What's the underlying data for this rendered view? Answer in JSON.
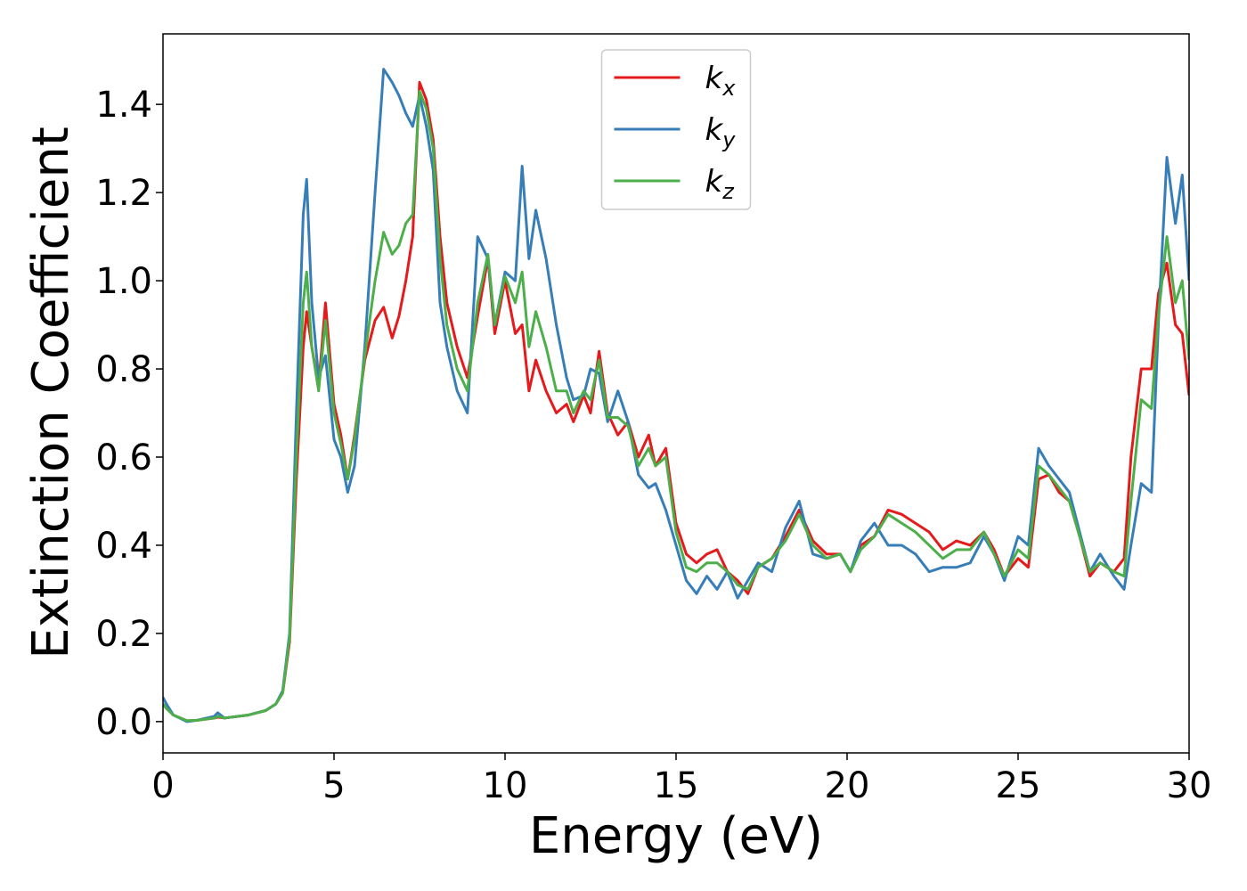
{
  "chart_data": {
    "type": "line",
    "x_label": "Energy (eV)",
    "y_label": "Extinction Coefficient",
    "x": [
      0,
      0.1,
      0.3,
      0.7,
      1.0,
      1.5,
      1.6,
      1.8,
      2.5,
      3.0,
      3.3,
      3.5,
      3.7,
      3.9,
      4.1,
      4.2,
      4.35,
      4.55,
      4.75,
      5.0,
      5.2,
      5.4,
      5.6,
      5.9,
      6.2,
      6.45,
      6.7,
      6.9,
      7.1,
      7.3,
      7.5,
      7.7,
      7.9,
      8.1,
      8.3,
      8.6,
      8.9,
      9.2,
      9.5,
      9.7,
      10.0,
      10.3,
      10.5,
      10.7,
      10.9,
      11.2,
      11.5,
      11.8,
      12.0,
      12.3,
      12.5,
      12.75,
      13.0,
      13.3,
      13.6,
      13.9,
      14.2,
      14.4,
      14.7,
      15.0,
      15.3,
      15.6,
      15.9,
      16.2,
      16.5,
      16.8,
      17.1,
      17.4,
      17.8,
      18.2,
      18.6,
      19.0,
      19.4,
      19.8,
      20.1,
      20.4,
      20.8,
      21.2,
      21.6,
      22.0,
      22.4,
      22.8,
      23.2,
      23.6,
      24.0,
      24.3,
      24.6,
      25.0,
      25.3,
      25.6,
      25.9,
      26.2,
      26.5,
      26.8,
      27.1,
      27.4,
      27.8,
      28.1,
      28.3,
      28.6,
      28.9,
      29.1,
      29.35,
      29.6,
      29.8,
      30.0
    ],
    "series": [
      {
        "name": "kx",
        "color": "#e41a1c",
        "values": [
          0.04,
          0.03,
          0.015,
          0.002,
          0.003,
          0.008,
          0.01,
          0.008,
          0.015,
          0.025,
          0.04,
          0.065,
          0.18,
          0.55,
          0.85,
          0.93,
          0.85,
          0.76,
          0.95,
          0.72,
          0.65,
          0.55,
          0.65,
          0.82,
          0.91,
          0.94,
          0.87,
          0.92,
          1.0,
          1.1,
          1.45,
          1.41,
          1.32,
          1.1,
          0.95,
          0.85,
          0.78,
          0.92,
          1.05,
          0.88,
          1.0,
          0.88,
          0.9,
          0.75,
          0.82,
          0.75,
          0.7,
          0.72,
          0.68,
          0.74,
          0.7,
          0.84,
          0.7,
          0.65,
          0.68,
          0.6,
          0.65,
          0.58,
          0.62,
          0.45,
          0.38,
          0.36,
          0.38,
          0.39,
          0.34,
          0.32,
          0.29,
          0.35,
          0.37,
          0.42,
          0.48,
          0.41,
          0.38,
          0.38,
          0.34,
          0.4,
          0.42,
          0.48,
          0.47,
          0.45,
          0.43,
          0.39,
          0.41,
          0.4,
          0.43,
          0.39,
          0.33,
          0.37,
          0.35,
          0.55,
          0.56,
          0.52,
          0.5,
          0.42,
          0.33,
          0.36,
          0.34,
          0.37,
          0.6,
          0.8,
          0.8,
          0.97,
          1.04,
          0.9,
          0.88,
          0.74
        ]
      },
      {
        "name": "ky",
        "color": "#377eb8",
        "values": [
          0.055,
          0.04,
          0.015,
          0.0,
          0.003,
          0.012,
          0.02,
          0.008,
          0.015,
          0.025,
          0.04,
          0.07,
          0.2,
          0.7,
          1.15,
          1.23,
          0.95,
          0.78,
          0.83,
          0.64,
          0.6,
          0.52,
          0.58,
          0.85,
          1.2,
          1.48,
          1.45,
          1.42,
          1.38,
          1.35,
          1.42,
          1.35,
          1.25,
          0.95,
          0.85,
          0.75,
          0.7,
          1.1,
          1.05,
          0.9,
          1.02,
          1.0,
          1.26,
          1.05,
          1.16,
          1.05,
          0.9,
          0.78,
          0.73,
          0.74,
          0.8,
          0.79,
          0.68,
          0.75,
          0.68,
          0.56,
          0.53,
          0.54,
          0.48,
          0.4,
          0.32,
          0.29,
          0.33,
          0.3,
          0.34,
          0.28,
          0.32,
          0.36,
          0.34,
          0.44,
          0.5,
          0.38,
          0.37,
          0.38,
          0.34,
          0.41,
          0.45,
          0.4,
          0.4,
          0.38,
          0.34,
          0.35,
          0.35,
          0.36,
          0.42,
          0.38,
          0.32,
          0.42,
          0.4,
          0.62,
          0.58,
          0.55,
          0.52,
          0.43,
          0.34,
          0.38,
          0.33,
          0.3,
          0.4,
          0.54,
          0.52,
          0.9,
          1.28,
          1.13,
          1.24,
          1.0
        ]
      },
      {
        "name": "kz",
        "color": "#4daf4a",
        "values": [
          0.04,
          0.03,
          0.015,
          0.002,
          0.003,
          0.008,
          0.012,
          0.008,
          0.015,
          0.025,
          0.04,
          0.065,
          0.19,
          0.6,
          0.95,
          1.02,
          0.85,
          0.75,
          0.91,
          0.7,
          0.63,
          0.55,
          0.64,
          0.83,
          1.0,
          1.11,
          1.06,
          1.08,
          1.13,
          1.15,
          1.43,
          1.39,
          1.3,
          1.05,
          0.9,
          0.8,
          0.75,
          0.95,
          1.06,
          0.9,
          1.01,
          0.95,
          1.02,
          0.85,
          0.93,
          0.85,
          0.75,
          0.75,
          0.7,
          0.75,
          0.73,
          0.82,
          0.69,
          0.69,
          0.67,
          0.58,
          0.62,
          0.58,
          0.6,
          0.43,
          0.35,
          0.34,
          0.36,
          0.36,
          0.34,
          0.31,
          0.3,
          0.35,
          0.37,
          0.41,
          0.47,
          0.4,
          0.37,
          0.38,
          0.34,
          0.39,
          0.42,
          0.47,
          0.45,
          0.43,
          0.4,
          0.37,
          0.39,
          0.39,
          0.43,
          0.38,
          0.33,
          0.39,
          0.37,
          0.58,
          0.56,
          0.53,
          0.5,
          0.42,
          0.34,
          0.36,
          0.34,
          0.33,
          0.5,
          0.73,
          0.71,
          0.92,
          1.1,
          0.95,
          1.0,
          0.82
        ]
      }
    ],
    "xlim": [
      0,
      30
    ],
    "xticks": [
      0,
      5,
      10,
      15,
      20,
      25,
      30
    ],
    "ylim": [
      -0.071,
      1.56
    ],
    "yticks": [
      {
        "value": 0,
        "label": "0.0"
      },
      0.2,
      0.4,
      0.6,
      0.8,
      {
        "value": 1,
        "label": "1.0"
      },
      1.2,
      1.4
    ],
    "legend": "upper center",
    "grid": false
  }
}
